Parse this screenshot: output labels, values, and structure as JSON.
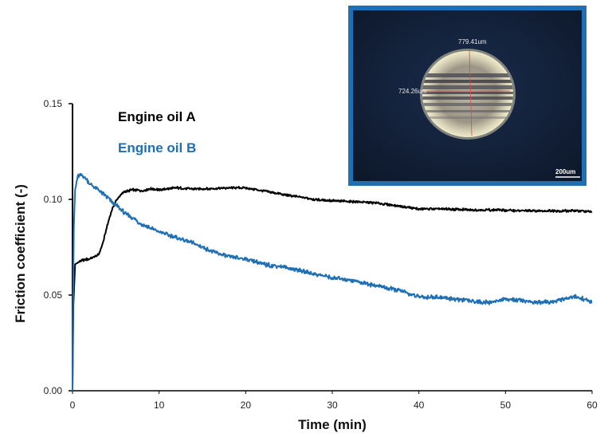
{
  "chart_data": {
    "type": "line",
    "xlabel": "Time (min)",
    "ylabel": "Friction coefficient (-)",
    "xlim": [
      0,
      60
    ],
    "ylim": [
      0,
      0.15
    ],
    "x_ticks": [
      "0",
      "10",
      "20",
      "30",
      "40",
      "50",
      "60"
    ],
    "y_ticks": [
      "0.00",
      "0.05",
      "0.10",
      "0.15"
    ],
    "grid": false,
    "legend_position": "top-left",
    "series": [
      {
        "name": "Engine oil A",
        "color": "#000000",
        "x": [
          0,
          0.1,
          0.3,
          0.6,
          1,
          2,
          3,
          3.5,
          4,
          4.5,
          5,
          5.5,
          6,
          7,
          8,
          9,
          10,
          12,
          14,
          16,
          18,
          20,
          22,
          25,
          28,
          31,
          34,
          37,
          40,
          43,
          46,
          49,
          52,
          55,
          58,
          60
        ],
        "y": [
          0.0,
          0.045,
          0.066,
          0.067,
          0.068,
          0.069,
          0.071,
          0.077,
          0.086,
          0.094,
          0.099,
          0.102,
          0.104,
          0.105,
          0.1045,
          0.1055,
          0.105,
          0.106,
          0.1055,
          0.1055,
          0.106,
          0.106,
          0.1045,
          0.102,
          0.1,
          0.099,
          0.0985,
          0.097,
          0.095,
          0.095,
          0.0945,
          0.0945,
          0.094,
          0.094,
          0.094,
          0.0935
        ]
      },
      {
        "name": "Engine oil B",
        "color": "#1f6fb5",
        "x": [
          0,
          0.05,
          0.15,
          0.3,
          0.6,
          1,
          1.5,
          2,
          3,
          4,
          5,
          6,
          8,
          10,
          12,
          14,
          16,
          18,
          20,
          22,
          24,
          26,
          28,
          30,
          32,
          34,
          36,
          38,
          40,
          42,
          44,
          46,
          48,
          50,
          52,
          54,
          56,
          58,
          59,
          60
        ],
        "y": [
          0.0,
          0.04,
          0.085,
          0.105,
          0.112,
          0.113,
          0.111,
          0.108,
          0.105,
          0.101,
          0.097,
          0.093,
          0.087,
          0.083,
          0.08,
          0.077,
          0.073,
          0.07,
          0.069,
          0.066,
          0.065,
          0.063,
          0.061,
          0.059,
          0.058,
          0.056,
          0.054,
          0.052,
          0.049,
          0.049,
          0.048,
          0.047,
          0.046,
          0.048,
          0.047,
          0.046,
          0.047,
          0.049,
          0.048,
          0.046
        ]
      }
    ],
    "inset": {
      "measure_1": "779.41um",
      "measure_2": "724.26um",
      "scale_bar": "200um",
      "frame_color": "#1f6fb5"
    }
  }
}
